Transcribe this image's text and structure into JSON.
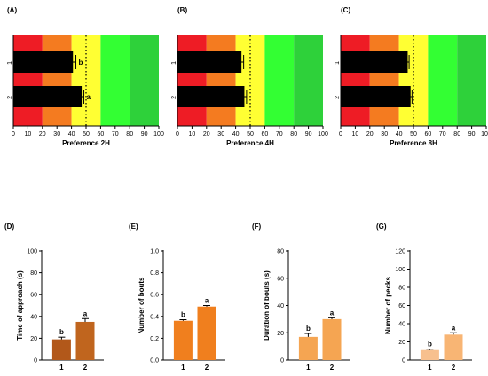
{
  "colors": {
    "zones": [
      "#ee1c25",
      "#f47b20",
      "#ffff33",
      "#33ff33",
      "#2ed13a"
    ],
    "bar_top": "#000000",
    "bar_d": "#c0651e",
    "bar_d2": "#b2581a",
    "bar_e": "#f07f1e",
    "bar_f": "#f5a552",
    "bar_g": "#f7c08e",
    "bar_g2": "#f8b574"
  },
  "chart_data": [
    {
      "type": "bar",
      "orientation": "horizontal",
      "panel_label": "(A)",
      "xlabel": "Preference 2H",
      "xlim": [
        0,
        100
      ],
      "xticks": [
        "0",
        "10",
        "20",
        "30",
        "40",
        "50",
        "60",
        "70",
        "80",
        "90",
        "100"
      ],
      "zones": [
        [
          0,
          20
        ],
        [
          20,
          40
        ],
        [
          40,
          60
        ],
        [
          60,
          80
        ],
        [
          80,
          100
        ]
      ],
      "reference_line": 50,
      "categories": [
        "1",
        "2"
      ],
      "values": [
        41,
        47
      ],
      "errors": [
        2,
        1.5
      ],
      "significance": [
        "b",
        "a"
      ]
    },
    {
      "type": "bar",
      "orientation": "horizontal",
      "panel_label": "(B)",
      "xlabel": "Preference 4H",
      "xlim": [
        0,
        100
      ],
      "xticks": [
        "0",
        "10",
        "20",
        "30",
        "40",
        "50",
        "60",
        "70",
        "80",
        "90",
        "100"
      ],
      "zones": [
        [
          0,
          20
        ],
        [
          20,
          40
        ],
        [
          40,
          60
        ],
        [
          60,
          80
        ],
        [
          80,
          100
        ]
      ],
      "reference_line": 50,
      "categories": [
        "1",
        "2"
      ],
      "values": [
        44,
        46
      ],
      "errors": [
        1.5,
        1.5
      ],
      "significance": [
        "",
        ""
      ]
    },
    {
      "type": "bar",
      "orientation": "horizontal",
      "panel_label": "(C)",
      "xlabel": "Preference 8H",
      "xlim": [
        0,
        100
      ],
      "xticks": [
        "0",
        "10",
        "20",
        "30",
        "40",
        "50",
        "60",
        "70",
        "80",
        "90",
        "100"
      ],
      "zones": [
        [
          0,
          20
        ],
        [
          20,
          40
        ],
        [
          40,
          60
        ],
        [
          60,
          80
        ],
        [
          80,
          100
        ]
      ],
      "reference_line": 50,
      "categories": [
        "1",
        "2"
      ],
      "values": [
        46,
        48
      ],
      "errors": [
        1,
        1
      ],
      "significance": [
        "",
        ""
      ]
    },
    {
      "type": "bar",
      "panel_label": "(D)",
      "ylabel": "Time of approach (s)",
      "ylim": [
        0,
        100
      ],
      "yticks": [
        "0",
        "20",
        "40",
        "60",
        "80",
        "100"
      ],
      "categories": [
        "1",
        "2"
      ],
      "values": [
        19,
        35
      ],
      "errors": [
        2,
        3
      ],
      "significance": [
        "b",
        "a"
      ]
    },
    {
      "type": "bar",
      "panel_label": "(E)",
      "ylabel": "Number of bouts",
      "ylim": [
        0,
        1.0
      ],
      "yticks": [
        "0.0",
        "0.2",
        "0.4",
        "0.6",
        "0.8",
        "1.0"
      ],
      "categories": [
        "1",
        "2"
      ],
      "values": [
        0.36,
        0.49
      ],
      "errors": [
        0.01,
        0.01
      ],
      "significance": [
        "b",
        "a"
      ]
    },
    {
      "type": "bar",
      "panel_label": "(F)",
      "ylabel": "Duration of bouts (s)",
      "ylim": [
        0,
        80
      ],
      "yticks": [
        "0",
        "20",
        "40",
        "60",
        "80"
      ],
      "categories": [
        "1",
        "2"
      ],
      "values": [
        17,
        30
      ],
      "errors": [
        2.5,
        1
      ],
      "significance": [
        "b",
        "a"
      ]
    },
    {
      "type": "bar",
      "panel_label": "(G)",
      "ylabel": "Number of pecks",
      "ylim": [
        0,
        120
      ],
      "yticks": [
        "0",
        "20",
        "40",
        "60",
        "80",
        "100",
        "120"
      ],
      "categories": [
        "1",
        "2"
      ],
      "values": [
        11,
        28
      ],
      "errors": [
        1,
        2
      ],
      "significance": [
        "b",
        "a"
      ]
    }
  ]
}
